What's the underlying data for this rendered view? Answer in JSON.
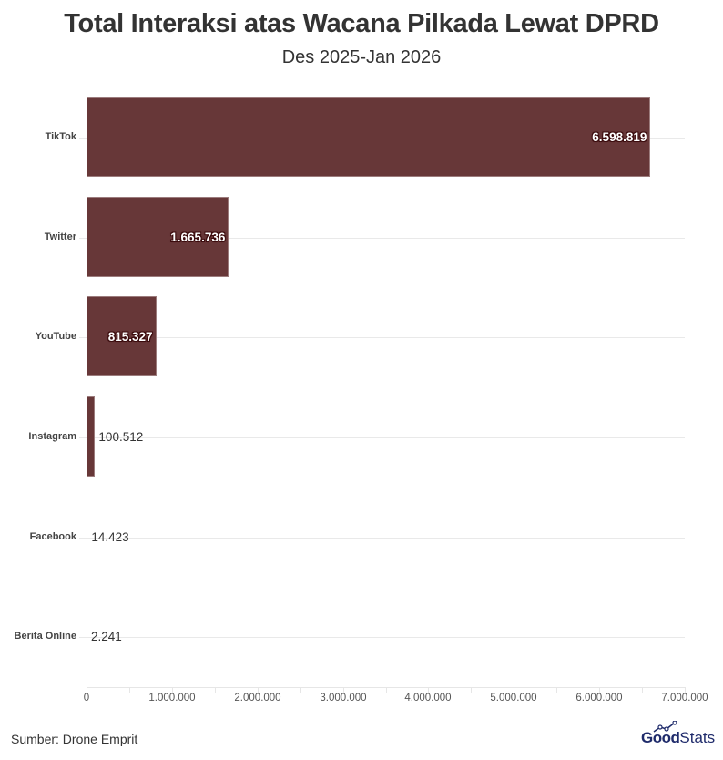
{
  "header": {
    "title": "Total Interaksi atas Wacana Pilkada Lewat DPRD",
    "subtitle": "Des 2025-Jan 2026"
  },
  "footer": {
    "source": "Sumber: Drone Emprit",
    "logo_bold": "Good",
    "logo_light": "Stats"
  },
  "colors": {
    "bar": "#673738",
    "text": "#333333",
    "logo": "#1f2b6b"
  },
  "chart_data": {
    "type": "bar",
    "orientation": "horizontal",
    "title": "Total Interaksi atas Wacana Pilkada Lewat DPRD",
    "subtitle": "Des 2025-Jan 2026",
    "categories": [
      "TikTok",
      "Twitter",
      "YouTube",
      "Instagram",
      "Facebook",
      "Berita Online"
    ],
    "values": [
      6598819,
      1665736,
      815327,
      100512,
      14423,
      2241
    ],
    "value_labels": [
      "6.598.819",
      "1.665.736",
      "815.327",
      "100.512",
      "14.423",
      "2.241"
    ],
    "xlabel": "",
    "ylabel": "",
    "xlim": [
      0,
      7000000
    ],
    "x_ticks": [
      "0",
      "1.000.000",
      "2.000.000",
      "3.000.000",
      "4.000.000",
      "5.000.000",
      "6.000.000",
      "7.000.000"
    ],
    "grid": true,
    "legend": "none",
    "source": "Sumber: Drone Emprit"
  }
}
